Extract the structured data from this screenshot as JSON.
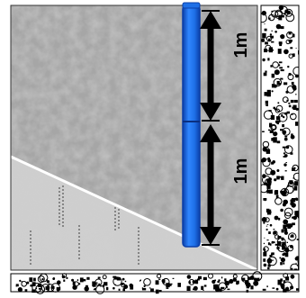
{
  "diagram": {
    "measurements": [
      {
        "label": "1m"
      },
      {
        "label": "1m"
      }
    ],
    "colors": {
      "upper_stratum": "#a6a6a6",
      "lower_stratum": "#cfcfcf",
      "pipe": "#1e6fe6",
      "pipe_edge": "#0b3fa8",
      "column_fill": "#ffffff",
      "column_speckle": "#000000",
      "boundary_line": "#ffffff",
      "arrow": "#000000"
    },
    "icons": [
      "double-arrow-icon"
    ]
  }
}
